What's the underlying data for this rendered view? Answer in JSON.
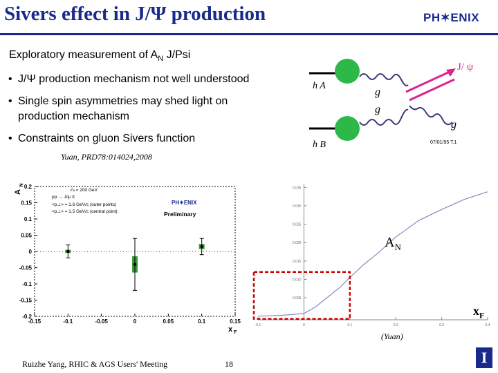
{
  "header": {
    "title": "Sivers effect in J/Ψ production",
    "logo": "PH✶ENIX"
  },
  "subtitle": {
    "pre": "Exploratory measurement of A",
    "sub": "N",
    "post": " J/Psi"
  },
  "bullets": [
    {
      "line1": "J/Ψ production mechanism not well understood",
      "line2": ""
    },
    {
      "line1": "Single spin asymmetries may shed light on",
      "line2": "production mechanism"
    },
    {
      "line1": "Constraints on gluon Sivers function",
      "line2": ""
    }
  ],
  "citation": "Yuan, PRD78:014024,2008",
  "diagram": {
    "hA": "h A",
    "hB": "h B",
    "g": "g",
    "jpsi": "J/ ψ",
    "stamp": "07/01/95 T.1"
  },
  "chart_data": [
    {
      "type": "scatter",
      "title": "",
      "xlabel": "x_F",
      "ylabel": "A_N",
      "xlim": [
        -0.15,
        0.15
      ],
      "ylim": [
        -0.2,
        0.2
      ],
      "x_ticks": [
        "-0.15",
        "-0.1",
        "-0.05",
        "0",
        "0.05",
        "0.1",
        "0.15"
      ],
      "y_ticks": [
        "0.2",
        "0.15",
        "0.1",
        "0.05",
        "0",
        "-0.05",
        "-0.1",
        "-0.15",
        "-0.2"
      ],
      "annotations": [
        "√s = 200 GeV",
        "pp → J/ψ X",
        "<p⊥> = 1.6 GeV/c (outer points)",
        "<p⊥> = 1.5 GeV/c (central point)",
        "PH✶ENIX",
        "Preliminary"
      ],
      "series": [
        {
          "x": [
            -0.1,
            0.0,
            0.1
          ],
          "y": [
            0.0,
            -0.04,
            0.015
          ],
          "stat_err": [
            0.02,
            0.08,
            0.025
          ],
          "sys_err": [
            0.005,
            0.025,
            0.008
          ]
        }
      ],
      "colors": {
        "sys_box": "#3a9a3a",
        "point": "#000000"
      }
    },
    {
      "type": "line",
      "title": "",
      "xlabel": "x_F",
      "ylabel": "A_N",
      "xlim": [
        -0.1,
        0.4
      ],
      "ylim": [
        -0.001,
        0.036
      ],
      "x_ticks": [
        "-0.1",
        "0",
        "0.1",
        "0.2",
        "0.3",
        "0.4"
      ],
      "y_ticks": [
        "0.035",
        "0.030",
        "0.025",
        "0.020",
        "0.015",
        "0.010",
        "0.005"
      ],
      "series": [
        {
          "x": [
            -0.1,
            -0.05,
            0.0,
            0.025,
            0.05,
            0.08,
            0.1,
            0.13,
            0.16,
            0.2,
            0.25,
            0.3,
            0.35,
            0.4
          ],
          "y": [
            0.0,
            0.0002,
            0.0007,
            0.0025,
            0.005,
            0.008,
            0.0105,
            0.014,
            0.017,
            0.0215,
            0.026,
            0.029,
            0.0318,
            0.0338
          ]
        }
      ],
      "highlight_box": {
        "x_range": [
          -0.1,
          0.1
        ],
        "y_range": [
          0.0,
          0.012
        ],
        "color": "#d00000"
      },
      "source": "(Yuan)"
    }
  ],
  "right_labels": {
    "an_main": "A",
    "an_sub": "N",
    "xf_main": "x",
    "xf_sub": "F"
  },
  "footer": {
    "left": "Ruizhe Yang, RHIC & AGS Users' Meeting",
    "page": "18",
    "logo": "I"
  },
  "colors": {
    "title": "#1a2a8c",
    "gluon_dot": "#2db84a",
    "jpsi_arrow": "#e0208c",
    "gluon_line": "#3a3a7a",
    "box": "#d00000"
  }
}
